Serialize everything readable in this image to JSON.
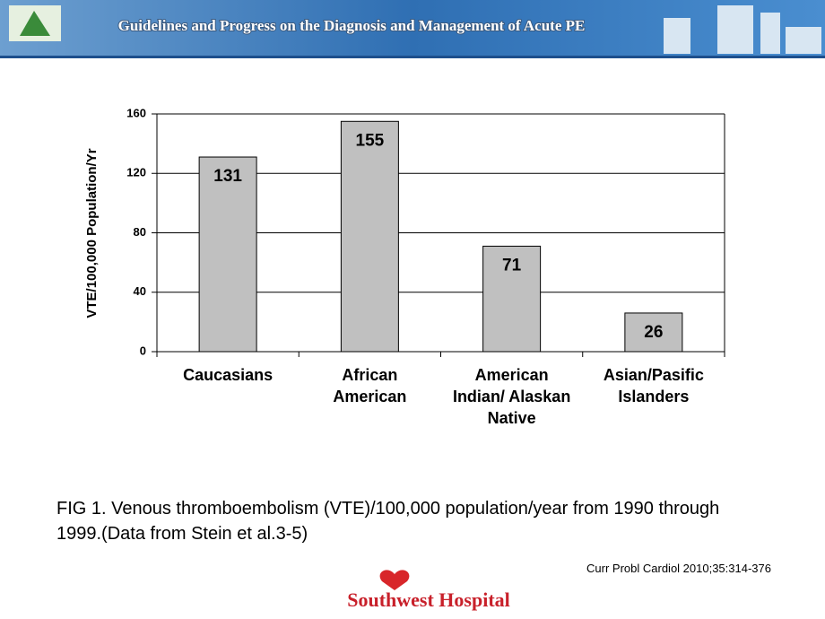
{
  "header": {
    "title": "Guidelines and Progress on the Diagnosis and Management of Acute PE"
  },
  "chart_data": {
    "type": "bar",
    "y_label": "VTE/100,000 Population/Yr",
    "categories": [
      "Caucasians",
      "African\nAmerican",
      "American\nIndian/ Alaskan\nNative",
      "Asian/Pasific\nIslanders"
    ],
    "values": [
      131,
      155,
      71,
      26
    ],
    "color": "#c0c0c0",
    "ylim": [
      0,
      160
    ],
    "yticks": [
      0,
      40,
      80,
      120,
      160
    ],
    "grid": true
  },
  "caption": "FIG 1. Venous thromboembolism (VTE)/100,000 population/year from 1990 through 1999.(Data from Stein et al.3-5)",
  "citation": "Curr Probl Cardiol 2010;35:314-376",
  "footer": {
    "hospital": "Southwest Hospital"
  }
}
